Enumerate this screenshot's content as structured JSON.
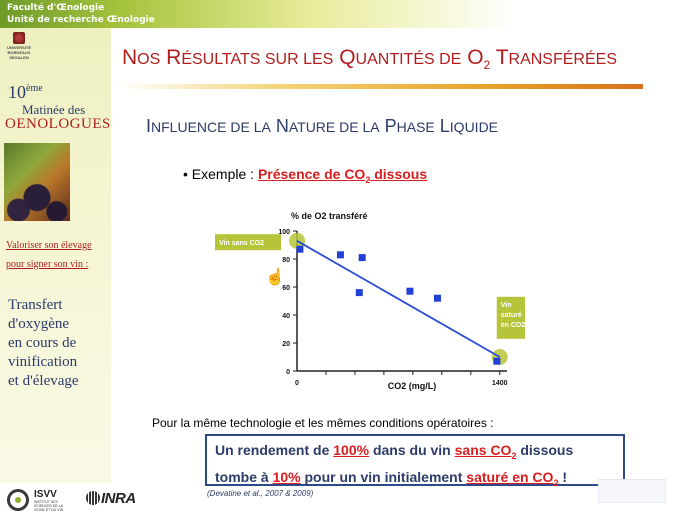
{
  "header": {
    "line1": "Faculté d'Œnologie",
    "line2": "Unité de recherche Œnologie"
  },
  "sidebar": {
    "university": [
      "UNIVERSITÉ",
      "BORDEAUX",
      "SEGALEN"
    ],
    "edition_number": "10",
    "edition_suffix": "ème",
    "event_name": "Matinée des",
    "event_audience": "OENOLOGUES",
    "slogan_1": "Valoriser son élevage",
    "slogan_2": "pour signer son vin :",
    "topic": [
      "Transfert",
      "d'oxygène",
      "en cours de",
      "vinification",
      "et d'élevage"
    ]
  },
  "slide": {
    "title": {
      "w1_big": "N",
      "w1_small": "OS",
      "w2_big": "R",
      "w2_small": "ÉSULTATS SUR LES",
      "w3_big": "Q",
      "w3_small": "UANTITÉS DE",
      "w4": "O",
      "w4_sub": "2",
      "w5_big": "T",
      "w5_small": "RANSFÉRÉES"
    },
    "subtitle": {
      "w1_big": "I",
      "w1_small": "NFLUENCE DE LA",
      "w2_big": "N",
      "w2_small": "ATURE DE LA",
      "w3_big": "P",
      "w3_small": "HASE",
      "w4_big": "L",
      "w4_small": "IQUIDE"
    },
    "example_bullet": "• Exemple : ",
    "example_highlight_pre": "Présence de CO",
    "example_highlight_sub": "2",
    "example_highlight_post": " dissous",
    "conditions": "Pour la même technologie et les mêmes conditions opératoires :",
    "result": {
      "p1": "Un rendement de ",
      "p2": "100%",
      "p3": " dans du vin ",
      "p4": "sans CO",
      "p4_sub": "2",
      "p5": " dissous",
      "p6": "tombe à ",
      "p7": "10%",
      "p8": " pour un vin initialement ",
      "p9": "saturé en CO",
      "p9_sub": "2",
      "p10": " !"
    },
    "reference": "(Devatine et al., 2007 & 2009)"
  },
  "footer": {
    "isvv": "ISVV",
    "isvv_sub": "INSTITUT DES SCIENCES DE LA VIGNE ET DU VIN",
    "inra": "INRA"
  },
  "chart_data": {
    "type": "scatter",
    "title": "% de O2 transféré",
    "xlabel": "CO2 (mg/L)",
    "ylabel": "",
    "xlim": [
      0,
      1450
    ],
    "ylim": [
      0,
      100
    ],
    "x_ticks": [
      0,
      1400
    ],
    "y_ticks": [
      0,
      20,
      40,
      60,
      80,
      100
    ],
    "grid": false,
    "points": [
      {
        "x": 20,
        "y": 87
      },
      {
        "x": 300,
        "y": 83
      },
      {
        "x": 450,
        "y": 81
      },
      {
        "x": 430,
        "y": 56
      },
      {
        "x": 780,
        "y": 57
      },
      {
        "x": 970,
        "y": 52
      },
      {
        "x": 1380,
        "y": 7
      }
    ],
    "trendline": {
      "x": [
        0,
        1400
      ],
      "y": [
        93,
        10
      ]
    },
    "annotations": [
      {
        "text": "Vin sans CO2",
        "x": 0,
        "y": 92
      },
      {
        "text": "Vin saturé en CO2",
        "x": 1400,
        "y": 8
      }
    ],
    "colors": {
      "points": "#1f3fd8",
      "line": "#2a4bd6",
      "highlight": "#b6c43a"
    }
  }
}
